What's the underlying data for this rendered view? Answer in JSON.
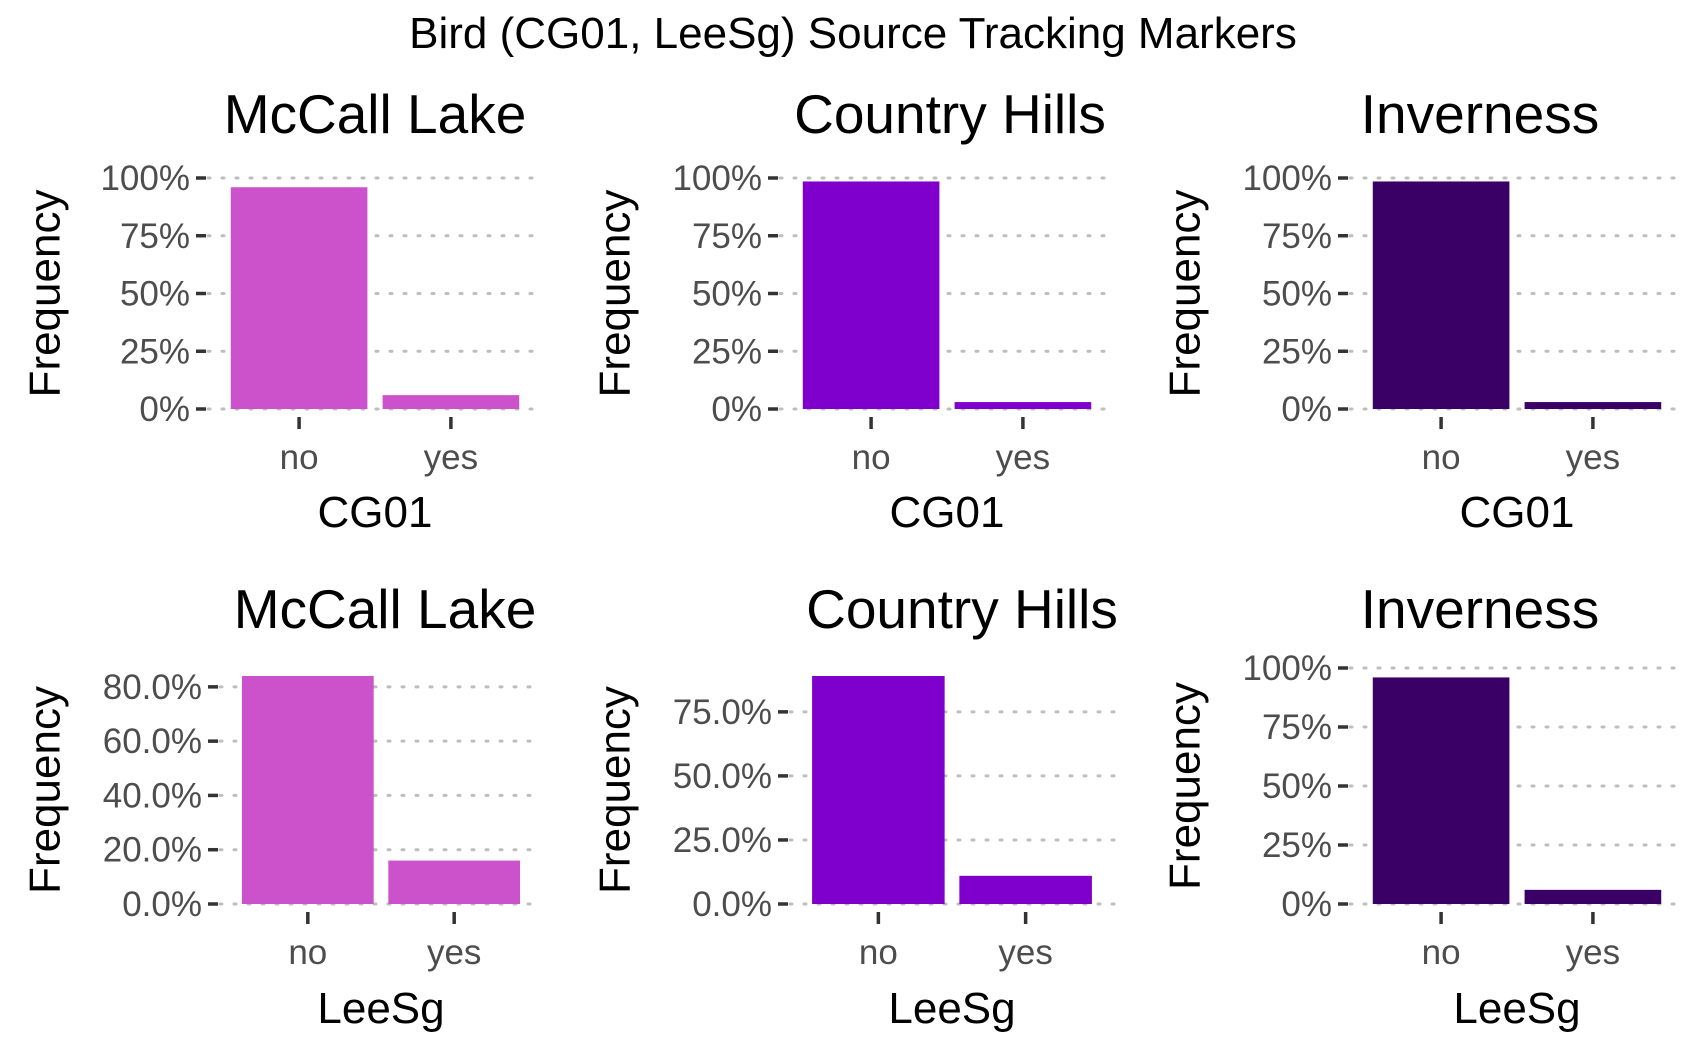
{
  "figure": {
    "title": "Bird (CG01, LeeSg) Source Tracking Markers"
  },
  "chart_data": [
    {
      "type": "bar",
      "title": "McCall Lake",
      "xlabel": "CG01",
      "ylabel": "Frequency",
      "categories": [
        "no",
        "yes"
      ],
      "values": [
        0.96,
        0.06
      ],
      "ylim": [
        0,
        1
      ],
      "yticks": [
        0,
        0.25,
        0.5,
        0.75,
        1
      ],
      "ytick_labels": [
        "0%",
        "25%",
        "50%",
        "75%",
        "100%"
      ],
      "color": "#CC52CC",
      "grid": "major-y dotted"
    },
    {
      "type": "bar",
      "title": "Country Hills",
      "xlabel": "CG01",
      "ylabel": "Frequency",
      "categories": [
        "no",
        "yes"
      ],
      "values": [
        0.985,
        0.03
      ],
      "ylim": [
        0,
        1
      ],
      "yticks": [
        0,
        0.25,
        0.5,
        0.75,
        1
      ],
      "ytick_labels": [
        "0%",
        "25%",
        "50%",
        "75%",
        "100%"
      ],
      "color": "#7F00CC",
      "grid": "major-y dotted"
    },
    {
      "type": "bar",
      "title": "Inverness",
      "xlabel": "CG01",
      "ylabel": "Frequency",
      "categories": [
        "no",
        "yes"
      ],
      "values": [
        0.985,
        0.03
      ],
      "ylim": [
        0,
        1
      ],
      "yticks": [
        0,
        0.25,
        0.5,
        0.75,
        1
      ],
      "ytick_labels": [
        "0%",
        "25%",
        "50%",
        "75%",
        "100%"
      ],
      "color": "#3A0066",
      "grid": "major-y dotted"
    },
    {
      "type": "bar",
      "title": "McCall Lake",
      "xlabel": "LeeSg",
      "ylabel": "Frequency",
      "categories": [
        "no",
        "yes"
      ],
      "values": [
        0.84,
        0.16
      ],
      "ylim": [
        0,
        0.84
      ],
      "yticks": [
        0,
        0.2,
        0.4,
        0.6,
        0.8
      ],
      "ytick_labels": [
        "0.0%",
        "20.0%",
        "40.0%",
        "60.0%",
        "80.0%"
      ],
      "color": "#CC52CC",
      "grid": "major-y dotted"
    },
    {
      "type": "bar",
      "title": "Country Hills",
      "xlabel": "LeeSg",
      "ylabel": "Frequency",
      "categories": [
        "no",
        "yes"
      ],
      "values": [
        0.89,
        0.11
      ],
      "ylim": [
        0,
        0.89
      ],
      "yticks": [
        0,
        0.25,
        0.5,
        0.75
      ],
      "ytick_labels": [
        "0.0%",
        "25.0%",
        "50.0%",
        "75.0%"
      ],
      "color": "#7F00CC",
      "grid": "major-y dotted"
    },
    {
      "type": "bar",
      "title": "Inverness",
      "xlabel": "LeeSg",
      "ylabel": "Frequency",
      "categories": [
        "no",
        "yes"
      ],
      "values": [
        0.96,
        0.06
      ],
      "ylim": [
        0,
        1
      ],
      "yticks": [
        0,
        0.25,
        0.5,
        0.75,
        1
      ],
      "ytick_labels": [
        "0%",
        "25%",
        "50%",
        "75%",
        "100%"
      ],
      "color": "#3A0066",
      "grid": "major-y dotted"
    }
  ]
}
